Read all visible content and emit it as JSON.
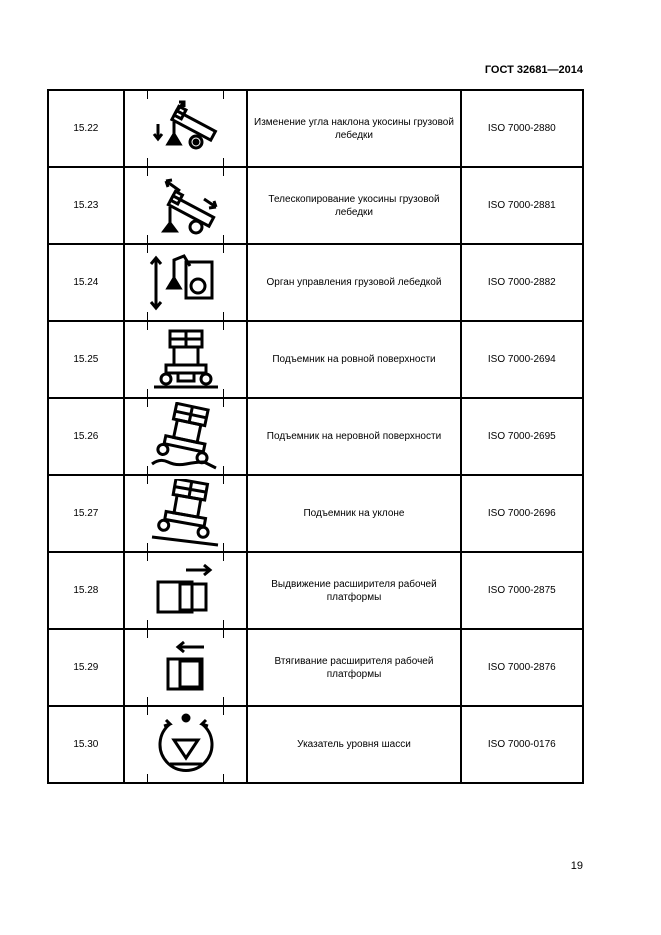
{
  "header": "ГОСТ 32681—2014",
  "page_number": "19",
  "rows": [
    {
      "num": "15.22",
      "icon": "crane-boom-angle-icon",
      "desc": "Изменение угла наклона укосины грузовой лебедки",
      "iso": "ISO 7000-2880"
    },
    {
      "num": "15.23",
      "icon": "crane-boom-telescope-icon",
      "desc": "Телескопирование укосины грузовой лебедки",
      "iso": "ISO 7000-2881"
    },
    {
      "num": "15.24",
      "icon": "winch-control-icon",
      "desc": "Орган управления грузовой лебедкой",
      "iso": "ISO 7000-2882"
    },
    {
      "num": "15.25",
      "icon": "lift-level-surface-icon",
      "desc": "Подъемник на ровной поверхности",
      "iso": "ISO 7000-2694"
    },
    {
      "num": "15.26",
      "icon": "lift-uneven-surface-icon",
      "desc": "Подъемник на неровной поверхности",
      "iso": "ISO 7000-2695"
    },
    {
      "num": "15.27",
      "icon": "lift-slope-icon",
      "desc": "Подъемник на уклоне",
      "iso": "ISO 7000-2696"
    },
    {
      "num": "15.28",
      "icon": "platform-extend-icon",
      "desc": "Выдвижение расширителя рабочей платформы",
      "iso": "ISO 7000-2875"
    },
    {
      "num": "15.29",
      "icon": "platform-retract-icon",
      "desc": "Втягивание расширителя рабочей платформы",
      "iso": "ISO 7000-2876"
    },
    {
      "num": "15.30",
      "icon": "chassis-level-indicator-icon",
      "desc": "Указатель уровня шасси",
      "iso": "ISO 7000-0176"
    }
  ]
}
